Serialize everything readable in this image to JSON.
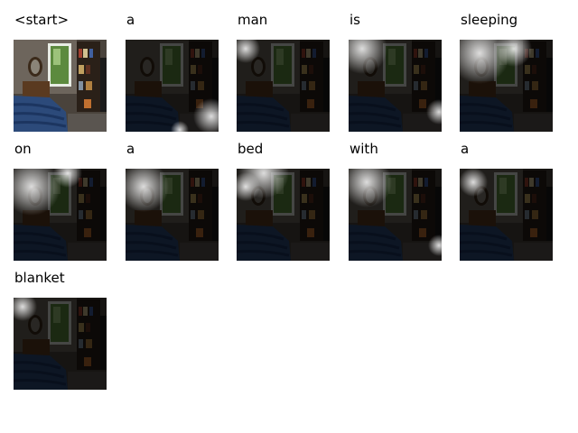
{
  "words": [
    "<start>",
    "a",
    "man",
    "is",
    "sleeping",
    "on",
    "a",
    "bed",
    "with",
    "a",
    "blanket"
  ]
}
